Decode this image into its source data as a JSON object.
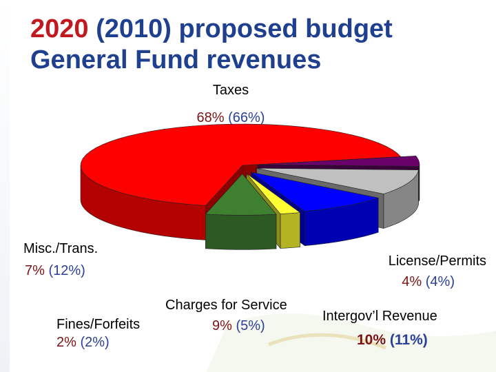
{
  "title": {
    "year": "2020",
    "rest": "(2010) proposed budget",
    "line2": "General Fund revenues"
  },
  "chart_data": {
    "type": "pie",
    "title": "2020 (2010) proposed budget General Fund revenues",
    "slices": [
      {
        "label": "Taxes",
        "value_2020": 68,
        "value_2010": 66,
        "color": "#ff0000",
        "text_2020": "68%",
        "text_2010": "(66%)"
      },
      {
        "label": "License/Permits",
        "value_2020": 4,
        "value_2010": 4,
        "color": "#6a006a",
        "text_2020": "4%",
        "text_2010": "(4%)"
      },
      {
        "label": "Intergov’l Revenue",
        "value_2020": 10,
        "value_2010": 11,
        "color": "#c0c0c0",
        "text_2020": "10%",
        "text_2010": "(11%)"
      },
      {
        "label": "Charges for Service",
        "value_2020": 9,
        "value_2010": 5,
        "color": "#0000ff",
        "text_2020": "9%",
        "text_2010": "(5%)"
      },
      {
        "label": "Fines/Forfeits",
        "value_2020": 2,
        "value_2010": 2,
        "color": "#ffff33",
        "text_2020": "2%",
        "text_2010": "(2%)"
      },
      {
        "label": "Misc./Trans.",
        "value_2020": 7,
        "value_2010": 12,
        "color": "#3f7f30",
        "text_2020": "7%",
        "text_2010": "(12%)"
      }
    ]
  }
}
